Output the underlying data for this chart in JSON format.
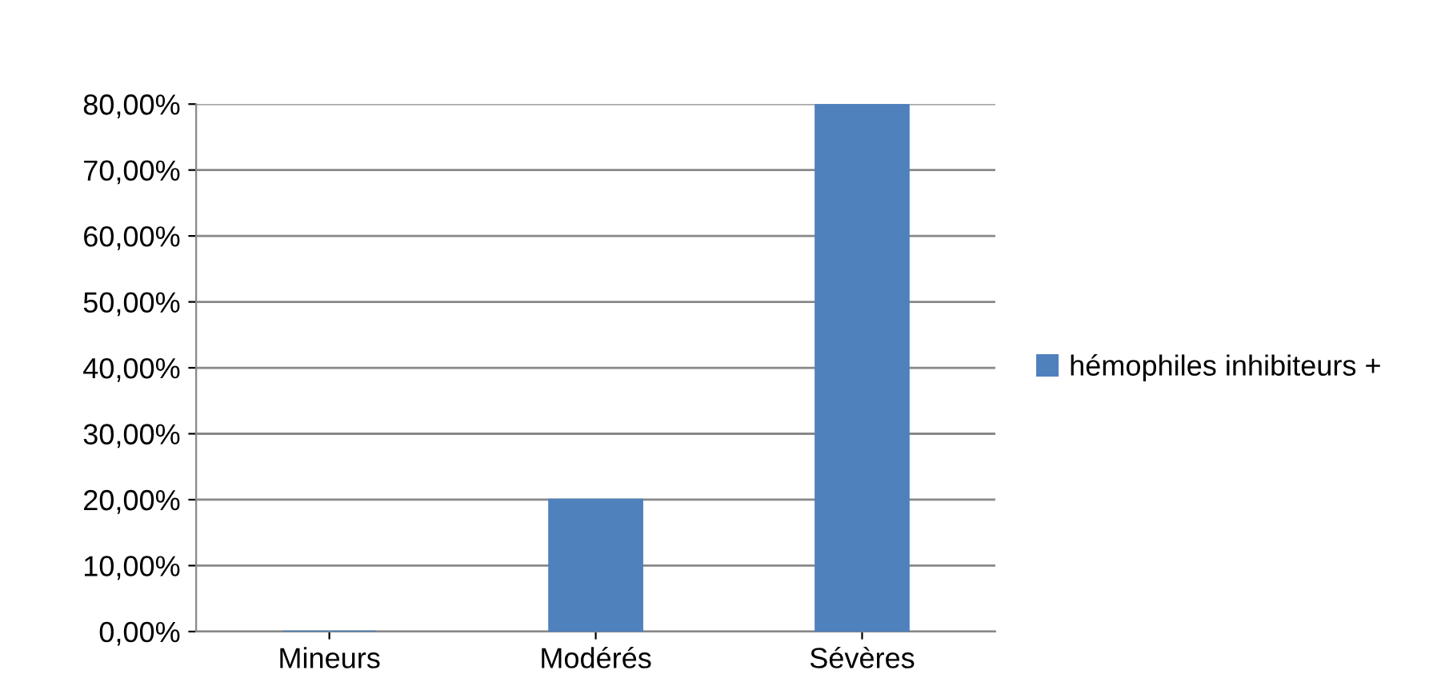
{
  "chart_data": {
    "type": "bar",
    "categories": [
      "Mineurs",
      "Modérés",
      "Sévères"
    ],
    "series": [
      {
        "name": "hémophiles inhibiteurs +",
        "color": "#4f81bd",
        "values": [
          0,
          20,
          80
        ]
      }
    ],
    "ylim": [
      0,
      80
    ],
    "yticks": [
      {
        "value": 0,
        "label": "0,00%"
      },
      {
        "value": 10,
        "label": "10,00%"
      },
      {
        "value": 20,
        "label": "20,00%"
      },
      {
        "value": 30,
        "label": "30,00%"
      },
      {
        "value": 40,
        "label": "40,00%"
      },
      {
        "value": 50,
        "label": "50,00%"
      },
      {
        "value": 60,
        "label": "60,00%"
      },
      {
        "value": 70,
        "label": "70,00%"
      },
      {
        "value": 80,
        "label": "80,00%"
      }
    ],
    "grid": "y",
    "legend": "right"
  }
}
